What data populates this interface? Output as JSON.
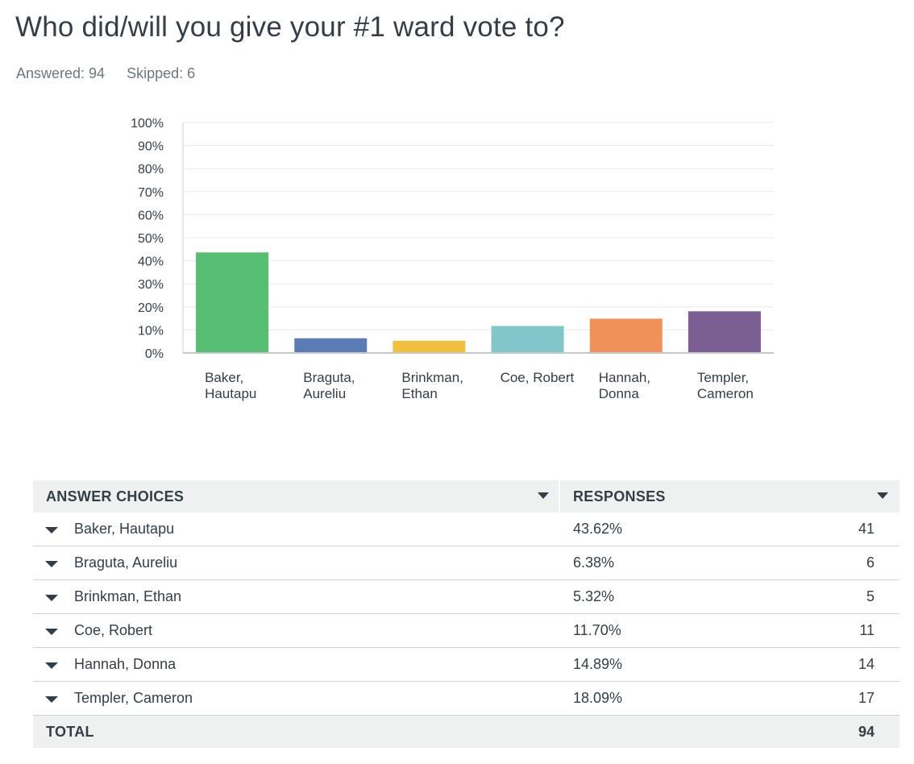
{
  "question": {
    "title": "Who did/will you give your #1 ward vote to?"
  },
  "stats": {
    "answered": "Answered: 94",
    "skipped": "Skipped: 6"
  },
  "chart_data": {
    "type": "bar",
    "categories": [
      [
        "Baker,",
        "Hautapu"
      ],
      [
        "Braguta,",
        "Aureliu"
      ],
      [
        "Brinkman,",
        "Ethan"
      ],
      [
        "Coe, Robert"
      ],
      [
        "Hannah,",
        "Donna"
      ],
      [
        "Templer,",
        "Cameron"
      ]
    ],
    "values": [
      43.62,
      6.38,
      5.32,
      11.7,
      14.89,
      18.09
    ],
    "colors": [
      "#57bf73",
      "#5b7bb5",
      "#f0c03e",
      "#82c6ca",
      "#f0915a",
      "#7c5f92"
    ],
    "yticks": [
      "0%",
      "10%",
      "20%",
      "30%",
      "40%",
      "50%",
      "60%",
      "70%",
      "80%",
      "90%",
      "100%"
    ],
    "ylim": [
      0,
      100
    ],
    "grid": true
  },
  "table": {
    "headers": {
      "choices": "ANSWER CHOICES",
      "responses": "RESPONSES"
    },
    "rows": [
      {
        "name": "Baker, Hautapu",
        "pct": "43.62%",
        "count": "41"
      },
      {
        "name": "Braguta, Aureliu",
        "pct": "6.38%",
        "count": "6"
      },
      {
        "name": "Brinkman, Ethan",
        "pct": "5.32%",
        "count": "5"
      },
      {
        "name": "Coe, Robert",
        "pct": "11.70%",
        "count": "11"
      },
      {
        "name": "Hannah, Donna",
        "pct": "14.89%",
        "count": "14"
      },
      {
        "name": "Templer, Cameron",
        "pct": "18.09%",
        "count": "17"
      }
    ],
    "total": {
      "label": "TOTAL",
      "value": "94"
    }
  }
}
